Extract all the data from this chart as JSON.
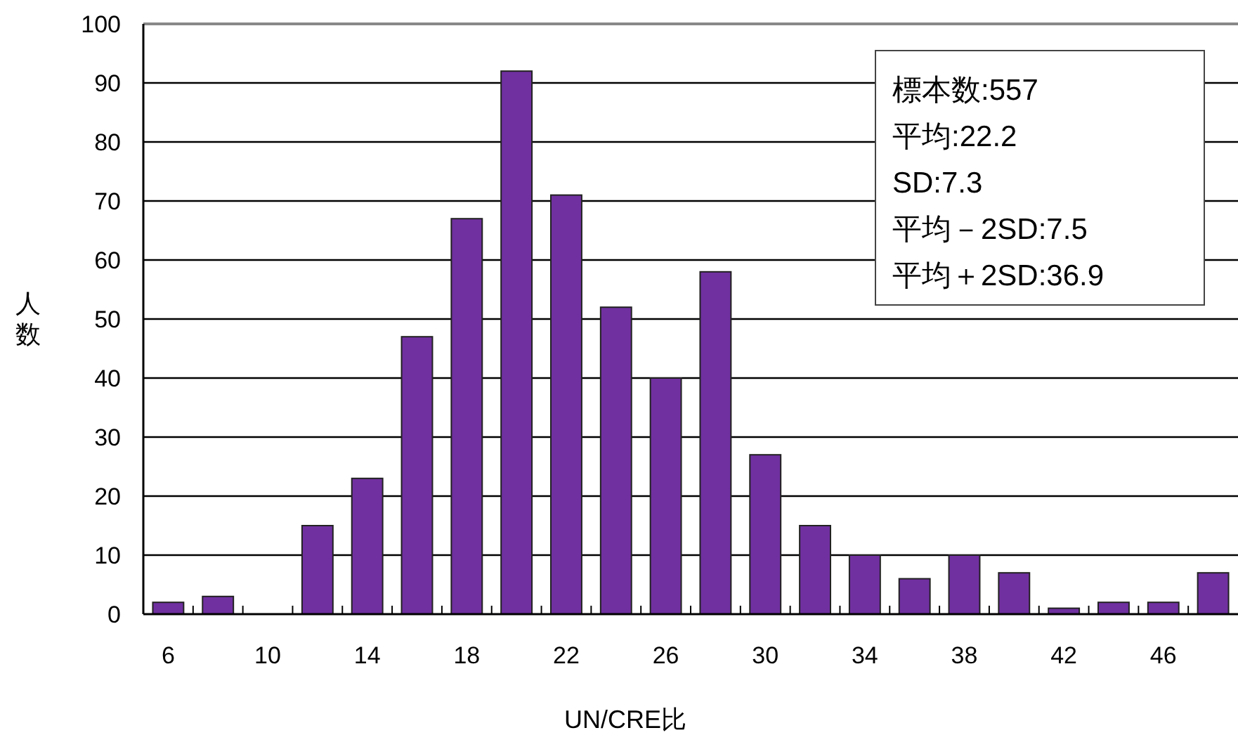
{
  "chart_data": {
    "type": "bar",
    "xlabel": "UN/CRE比",
    "ylabel": "人数",
    "categories": [
      "6",
      null,
      "10",
      null,
      "14",
      null,
      "18",
      null,
      "22",
      null,
      "26",
      null,
      "30",
      null,
      "34",
      null,
      "38",
      null,
      "42",
      null,
      "46",
      null
    ],
    "values": [
      2,
      3,
      0,
      15,
      23,
      47,
      67,
      92,
      71,
      52,
      40,
      58,
      27,
      15,
      10,
      6,
      10,
      7,
      1,
      2,
      2,
      7
    ],
    "color": "#7030a0",
    "ylim": [
      0,
      100
    ],
    "yticks": [
      0,
      10,
      20,
      30,
      40,
      50,
      60,
      70,
      80,
      90,
      100
    ],
    "grid": "y",
    "annotations": [
      "標本数:557",
      "平均:22.2",
      "SD:7.3",
      "平均－2SD:7.5",
      "平均＋2SD:36.9"
    ]
  }
}
